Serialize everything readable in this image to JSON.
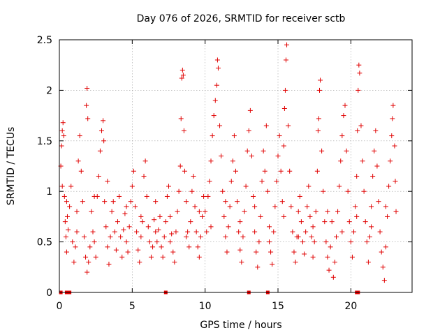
{
  "chart_data": {
    "type": "scatter",
    "title": "Day 076 of 2026, SRMTID for receiver sctb",
    "xlabel": "GPS time / hours",
    "ylabel": "SRMTID / TECUs",
    "xlim": [
      0,
      24.2
    ],
    "ylim": [
      0,
      2.5
    ],
    "x_ticks": [
      0,
      5,
      10,
      15,
      20
    ],
    "y_ticks": [
      0,
      0.5,
      1,
      1.5,
      2,
      2.5
    ],
    "x_tick_labels": [
      "0",
      "5",
      "10",
      "15",
      "20"
    ],
    "y_tick_labels": [
      "0",
      "0.5",
      "1",
      "1.5",
      "2",
      "2.5"
    ],
    "grid": true,
    "marker": "plus",
    "color": "#e00000",
    "series": [
      {
        "name": "SRMTID",
        "points": [
          [
            0.1,
            1.25
          ],
          [
            0.15,
            1.45
          ],
          [
            0.2,
            1.6
          ],
          [
            0.25,
            1.68
          ],
          [
            0.3,
            1.55
          ],
          [
            0.2,
            1.05
          ],
          [
            0.35,
            0.95
          ],
          [
            0.4,
            0.7
          ],
          [
            0.45,
            0.55
          ],
          [
            0.5,
            0.4
          ],
          [
            0.55,
            0.75
          ],
          [
            0.6,
            0.62
          ],
          [
            0.7,
            0.85
          ],
          [
            0.8,
            1.05
          ],
          [
            0.9,
            0.5
          ],
          [
            1.0,
            0.3
          ],
          [
            1.1,
            0.45
          ],
          [
            1.2,
            0.8
          ],
          [
            1.3,
            1.3
          ],
          [
            1.4,
            1.55
          ],
          [
            1.5,
            1.2
          ],
          [
            1.6,
            0.9
          ],
          [
            1.7,
            0.55
          ],
          [
            1.8,
            0.35
          ],
          [
            1.9,
            0.2
          ],
          [
            2.0,
            0.3
          ],
          [
            1.85,
            1.85
          ],
          [
            1.9,
            2.02
          ],
          [
            1.95,
            1.72
          ],
          [
            2.1,
            0.45
          ],
          [
            2.2,
            0.8
          ],
          [
            2.3,
            0.6
          ],
          [
            2.4,
            0.5
          ],
          [
            2.5,
            0.35
          ],
          [
            2.6,
            0.95
          ],
          [
            2.7,
            1.15
          ],
          [
            2.8,
            1.4
          ],
          [
            2.9,
            1.6
          ],
          [
            3.0,
            1.7
          ],
          [
            3.05,
            1.5
          ],
          [
            3.1,
            0.9
          ],
          [
            3.2,
            0.65
          ],
          [
            3.3,
            0.45
          ],
          [
            3.4,
            0.28
          ],
          [
            3.5,
            0.55
          ],
          [
            3.6,
            0.8
          ],
          [
            3.7,
            0.9
          ],
          [
            3.8,
            0.6
          ],
          [
            3.9,
            0.42
          ],
          [
            4.0,
            0.7
          ],
          [
            4.1,
            0.95
          ],
          [
            4.2,
            0.55
          ],
          [
            4.3,
            0.35
          ],
          [
            4.4,
            0.62
          ],
          [
            4.5,
            0.78
          ],
          [
            4.6,
            0.5
          ],
          [
            4.7,
            0.4
          ],
          [
            4.8,
            0.65
          ],
          [
            4.9,
            0.9
          ],
          [
            5.0,
            1.05
          ],
          [
            5.1,
            1.2
          ],
          [
            5.2,
            0.85
          ],
          [
            5.3,
            0.6
          ],
          [
            5.4,
            0.42
          ],
          [
            5.5,
            0.3
          ],
          [
            5.6,
            0.55
          ],
          [
            5.7,
            0.7
          ],
          [
            5.8,
            1.15
          ],
          [
            5.9,
            1.3
          ],
          [
            6.0,
            0.95
          ],
          [
            6.1,
            0.65
          ],
          [
            6.2,
            0.5
          ],
          [
            6.3,
            0.35
          ],
          [
            6.4,
            0.45
          ],
          [
            6.5,
            0.72
          ],
          [
            6.6,
            0.6
          ],
          [
            6.7,
            0.5
          ],
          [
            6.8,
            0.62
          ],
          [
            6.9,
            0.75
          ],
          [
            7.0,
            0.45
          ],
          [
            7.1,
            0.35
          ],
          [
            7.2,
            0.55
          ],
          [
            7.3,
            0.7
          ],
          [
            7.4,
            0.95
          ],
          [
            7.5,
            1.05
          ],
          [
            7.6,
            0.75
          ],
          [
            7.7,
            0.58
          ],
          [
            7.8,
            0.4
          ],
          [
            7.9,
            0.3
          ],
          [
            8.0,
            0.6
          ],
          [
            8.1,
            0.8
          ],
          [
            8.2,
            1.0
          ],
          [
            8.3,
            1.25
          ],
          [
            8.35,
            1.72
          ],
          [
            8.4,
            2.12
          ],
          [
            8.45,
            2.2
          ],
          [
            8.5,
            2.15
          ],
          [
            8.55,
            1.6
          ],
          [
            8.6,
            1.2
          ],
          [
            8.7,
            0.9
          ],
          [
            8.8,
            0.6
          ],
          [
            8.9,
            0.45
          ],
          [
            9.0,
            0.7
          ],
          [
            9.1,
            1.0
          ],
          [
            9.2,
            1.15
          ],
          [
            9.3,
            0.85
          ],
          [
            9.4,
            0.6
          ],
          [
            9.5,
            0.45
          ],
          [
            9.6,
            0.35
          ],
          [
            9.7,
            0.55
          ],
          [
            9.8,
            0.75
          ],
          [
            9.9,
            0.95
          ],
          [
            10.0,
            0.8
          ],
          [
            10.1,
            0.6
          ],
          [
            10.2,
            0.95
          ],
          [
            10.3,
            1.1
          ],
          [
            10.4,
            1.3
          ],
          [
            10.5,
            1.55
          ],
          [
            10.6,
            1.75
          ],
          [
            10.7,
            1.9
          ],
          [
            10.8,
            2.05
          ],
          [
            10.85,
            2.3
          ],
          [
            10.9,
            2.22
          ],
          [
            11.0,
            1.65
          ],
          [
            11.1,
            1.35
          ],
          [
            11.2,
            1.0
          ],
          [
            11.3,
            0.75
          ],
          [
            11.4,
            0.55
          ],
          [
            11.5,
            0.4
          ],
          [
            11.6,
            0.65
          ],
          [
            11.7,
            0.85
          ],
          [
            11.8,
            1.1
          ],
          [
            11.9,
            1.3
          ],
          [
            12.0,
            1.55
          ],
          [
            12.1,
            1.2
          ],
          [
            12.2,
            0.9
          ],
          [
            12.3,
            0.6
          ],
          [
            12.4,
            0.42
          ],
          [
            12.5,
            0.3
          ],
          [
            12.6,
            0.55
          ],
          [
            12.7,
            0.8
          ],
          [
            12.8,
            1.05
          ],
          [
            12.9,
            1.4
          ],
          [
            13.0,
            1.6
          ],
          [
            13.1,
            1.8
          ],
          [
            13.2,
            1.35
          ],
          [
            13.3,
            0.95
          ],
          [
            13.4,
            0.6
          ],
          [
            13.5,
            0.4
          ],
          [
            13.6,
            0.25
          ],
          [
            13.7,
            0.5
          ],
          [
            13.8,
            0.75
          ],
          [
            13.9,
            1.1
          ],
          [
            14.0,
            1.4
          ],
          [
            14.1,
            1.2
          ],
          [
            14.2,
            1.65
          ],
          [
            14.3,
            1.0
          ],
          [
            14.4,
            0.65
          ],
          [
            14.5,
            0.4
          ],
          [
            14.6,
            0.28
          ],
          [
            14.7,
            0.6
          ],
          [
            14.8,
            0.85
          ],
          [
            14.9,
            1.1
          ],
          [
            15.0,
            1.35
          ],
          [
            15.1,
            1.55
          ],
          [
            15.2,
            1.2
          ],
          [
            15.3,
            0.9
          ],
          [
            15.4,
            1.45
          ],
          [
            15.45,
            1.82
          ],
          [
            15.5,
            2.0
          ],
          [
            15.55,
            2.3
          ],
          [
            15.6,
            2.45
          ],
          [
            15.7,
            1.65
          ],
          [
            15.8,
            1.2
          ],
          [
            15.9,
            0.85
          ],
          [
            16.0,
            0.6
          ],
          [
            16.1,
            0.4
          ],
          [
            16.2,
            0.3
          ],
          [
            16.3,
            0.55
          ],
          [
            16.4,
            0.8
          ],
          [
            16.5,
            0.95
          ],
          [
            16.6,
            0.7
          ],
          [
            16.7,
            0.5
          ],
          [
            16.8,
            0.38
          ],
          [
            16.9,
            0.6
          ],
          [
            17.0,
            0.85
          ],
          [
            17.1,
            1.05
          ],
          [
            17.2,
            0.75
          ],
          [
            17.3,
            0.55
          ],
          [
            17.4,
            0.35
          ],
          [
            17.5,
            0.5
          ],
          [
            17.6,
            0.8
          ],
          [
            17.7,
            1.2
          ],
          [
            17.75,
            1.6
          ],
          [
            17.8,
            1.72
          ],
          [
            17.85,
            2.0
          ],
          [
            17.9,
            2.1
          ],
          [
            18.0,
            1.4
          ],
          [
            18.1,
            1.0
          ],
          [
            18.2,
            0.7
          ],
          [
            18.3,
            0.5
          ],
          [
            18.4,
            0.35
          ],
          [
            18.5,
            0.22
          ],
          [
            18.6,
            0.45
          ],
          [
            18.7,
            0.7
          ],
          [
            18.8,
            0.15
          ],
          [
            18.9,
            0.3
          ],
          [
            19.0,
            0.55
          ],
          [
            19.1,
            0.8
          ],
          [
            19.2,
            1.05
          ],
          [
            19.3,
            1.3
          ],
          [
            19.4,
            1.55
          ],
          [
            19.5,
            1.75
          ],
          [
            19.6,
            1.85
          ],
          [
            19.7,
            1.4
          ],
          [
            19.8,
            1.0
          ],
          [
            19.9,
            0.7
          ],
          [
            20.0,
            0.5
          ],
          [
            20.1,
            0.35
          ],
          [
            20.2,
            0.6
          ],
          [
            20.3,
            0.85
          ],
          [
            20.4,
            1.15
          ],
          [
            20.45,
            1.6
          ],
          [
            20.5,
            2.0
          ],
          [
            20.55,
            2.25
          ],
          [
            20.6,
            2.17
          ],
          [
            20.7,
            1.65
          ],
          [
            20.8,
            1.3
          ],
          [
            20.9,
            1.0
          ],
          [
            21.0,
            0.7
          ],
          [
            21.1,
            0.5
          ],
          [
            21.2,
            0.3
          ],
          [
            21.3,
            0.55
          ],
          [
            21.4,
            0.85
          ],
          [
            21.5,
            1.15
          ],
          [
            21.6,
            1.4
          ],
          [
            21.7,
            1.6
          ],
          [
            21.8,
            1.25
          ],
          [
            21.9,
            0.9
          ],
          [
            22.0,
            0.6
          ],
          [
            22.1,
            0.4
          ],
          [
            22.2,
            0.25
          ],
          [
            22.3,
            0.12
          ],
          [
            22.4,
            0.45
          ],
          [
            22.5,
            0.75
          ],
          [
            22.6,
            1.05
          ],
          [
            22.7,
            1.3
          ],
          [
            22.8,
            1.55
          ],
          [
            22.85,
            1.72
          ],
          [
            22.9,
            1.85
          ],
          [
            23.0,
            1.45
          ],
          [
            23.05,
            1.1
          ],
          [
            23.1,
            0.8
          ],
          [
            0.5,
            0.9
          ],
          [
            1.2,
            0.6
          ],
          [
            2.4,
            0.95
          ],
          [
            3.3,
            1.1
          ],
          [
            4.6,
            0.85
          ],
          [
            5.6,
            0.75
          ],
          [
            6.6,
            0.9
          ],
          [
            7.6,
            0.5
          ],
          [
            8.7,
            0.55
          ],
          [
            9.6,
            0.8
          ],
          [
            10.4,
            0.65
          ],
          [
            11.4,
            0.9
          ],
          [
            12.4,
            0.7
          ],
          [
            13.4,
            0.85
          ],
          [
            14.4,
            0.5
          ],
          [
            15.4,
            0.75
          ],
          [
            16.4,
            0.55
          ],
          [
            17.4,
            0.65
          ],
          [
            18.4,
            0.8
          ],
          [
            19.4,
            0.6
          ],
          [
            20.4,
            0.75
          ],
          [
            21.4,
            0.65
          ],
          [
            22.4,
            0.85
          ],
          [
            0.1,
            0.0
          ],
          [
            0.5,
            0.0
          ],
          [
            0.7,
            0.0
          ],
          [
            7.3,
            0.0
          ],
          [
            13.0,
            0.0
          ],
          [
            14.3,
            0.0
          ],
          [
            20.4,
            0.0
          ],
          [
            20.5,
            0.0
          ]
        ]
      }
    ]
  }
}
